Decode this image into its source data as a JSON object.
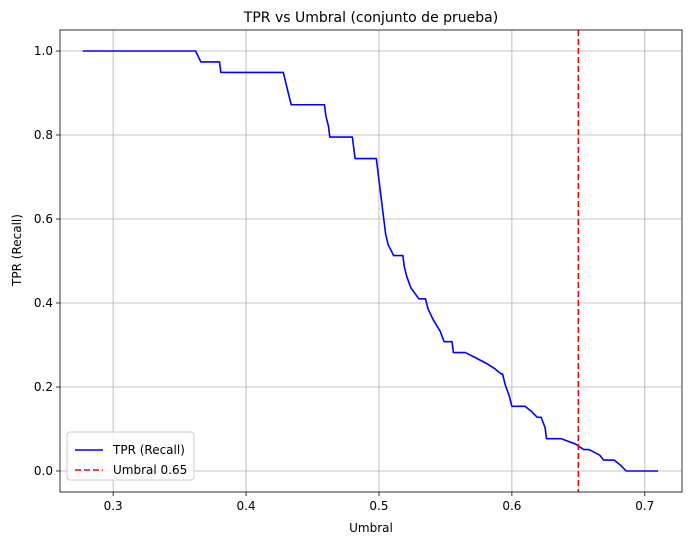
{
  "chart_data": {
    "type": "line",
    "title": "TPR vs Umbral  (conjunto de prueba)",
    "xlabel": "Umbral",
    "ylabel": "TPR (Recall)",
    "xlim": [
      0.26,
      0.728
    ],
    "ylim": [
      -0.05,
      1.05
    ],
    "xticks": [
      0.3,
      0.4,
      0.5,
      0.6,
      0.7
    ],
    "xtick_labels": [
      "0.3",
      "0.4",
      "0.5",
      "0.6",
      "0.7"
    ],
    "yticks": [
      0.0,
      0.2,
      0.4,
      0.6,
      0.8,
      1.0
    ],
    "ytick_labels": [
      "0.0",
      "0.2",
      "0.4",
      "0.6",
      "0.8",
      "1.0"
    ],
    "grid": true,
    "legend_position": "lower-left",
    "series": [
      {
        "name": "TPR (Recall)",
        "color": "#0000ff",
        "style": "solid",
        "x": [
          0.277,
          0.362,
          0.366,
          0.38,
          0.381,
          0.428,
          0.43,
          0.432,
          0.434,
          0.459,
          0.46,
          0.462,
          0.463,
          0.48,
          0.481,
          0.482,
          0.498,
          0.499,
          0.5,
          0.501,
          0.502,
          0.503,
          0.504,
          0.505,
          0.507,
          0.509,
          0.511,
          0.518,
          0.519,
          0.521,
          0.524,
          0.527,
          0.53,
          0.535,
          0.537,
          0.541,
          0.546,
          0.549,
          0.555,
          0.556,
          0.565,
          0.573,
          0.581,
          0.587,
          0.592,
          0.593,
          0.595,
          0.598,
          0.6,
          0.61,
          0.615,
          0.619,
          0.622,
          0.625,
          0.626,
          0.637,
          0.648,
          0.654,
          0.658,
          0.666,
          0.669,
          0.677,
          0.682,
          0.686,
          0.693,
          0.71
        ],
        "y": [
          1.0,
          1.0,
          0.974,
          0.974,
          0.949,
          0.949,
          0.923,
          0.897,
          0.872,
          0.872,
          0.846,
          0.821,
          0.795,
          0.795,
          0.769,
          0.744,
          0.744,
          0.718,
          0.692,
          0.667,
          0.641,
          0.615,
          0.59,
          0.564,
          0.538,
          0.526,
          0.513,
          0.513,
          0.487,
          0.462,
          0.436,
          0.423,
          0.41,
          0.41,
          0.385,
          0.359,
          0.333,
          0.308,
          0.308,
          0.282,
          0.282,
          0.269,
          0.256,
          0.244,
          0.231,
          0.231,
          0.205,
          0.179,
          0.154,
          0.154,
          0.141,
          0.128,
          0.128,
          0.103,
          0.077,
          0.077,
          0.064,
          0.051,
          0.051,
          0.038,
          0.026,
          0.026,
          0.013,
          0.0,
          0.0,
          0.0
        ]
      },
      {
        "name": "Umbral 0.65",
        "color": "#ff0000",
        "style": "dashed",
        "vline_x": 0.65
      }
    ]
  }
}
